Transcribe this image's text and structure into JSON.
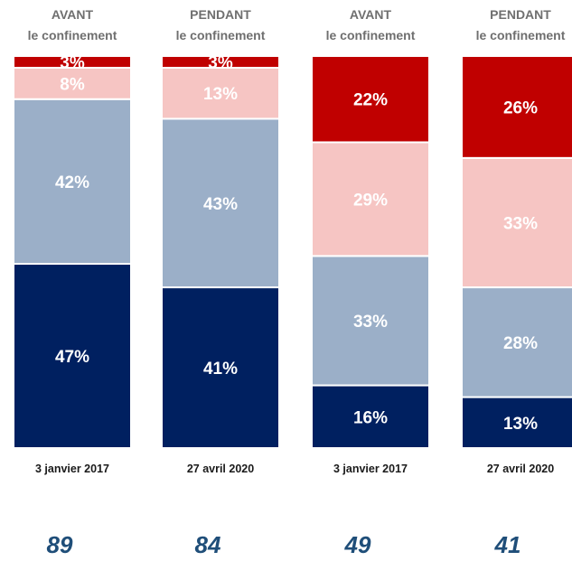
{
  "chart_data": {
    "type": "bar",
    "stacked": true,
    "stack_order_bottom_to_top": [
      "navy",
      "light-blue",
      "pink",
      "red"
    ],
    "colors": {
      "navy": "#002060",
      "light-blue": "#9BAFC8",
      "pink": "#F6C5C3",
      "red": "#C00000"
    },
    "columns": [
      {
        "header_line1": "AVANT",
        "header_line2": "le confinement",
        "date": "3 janvier 2017",
        "total": "89",
        "values": [
          47,
          42,
          8,
          3
        ],
        "labels": [
          "47%",
          "42%",
          "8%",
          "3%"
        ]
      },
      {
        "header_line1": "PENDANT",
        "header_line2": "le confinement",
        "date": "27 avril 2020",
        "total": "84",
        "values": [
          41,
          43,
          13,
          3
        ],
        "labels": [
          "41%",
          "43%",
          "13%",
          "3%"
        ]
      },
      {
        "header_line1": "AVANT",
        "header_line2": "le confinement",
        "date": "3 janvier 2017",
        "total": "49",
        "values": [
          16,
          33,
          29,
          22
        ],
        "labels": [
          "16%",
          "33%",
          "29%",
          "22%"
        ]
      },
      {
        "header_line1": "PENDANT",
        "header_line2": "le confinement",
        "date": "27 avril 2020",
        "total": "41",
        "values": [
          13,
          28,
          33,
          26
        ],
        "labels": [
          "13%",
          "28%",
          "33%",
          "26%"
        ]
      }
    ]
  }
}
